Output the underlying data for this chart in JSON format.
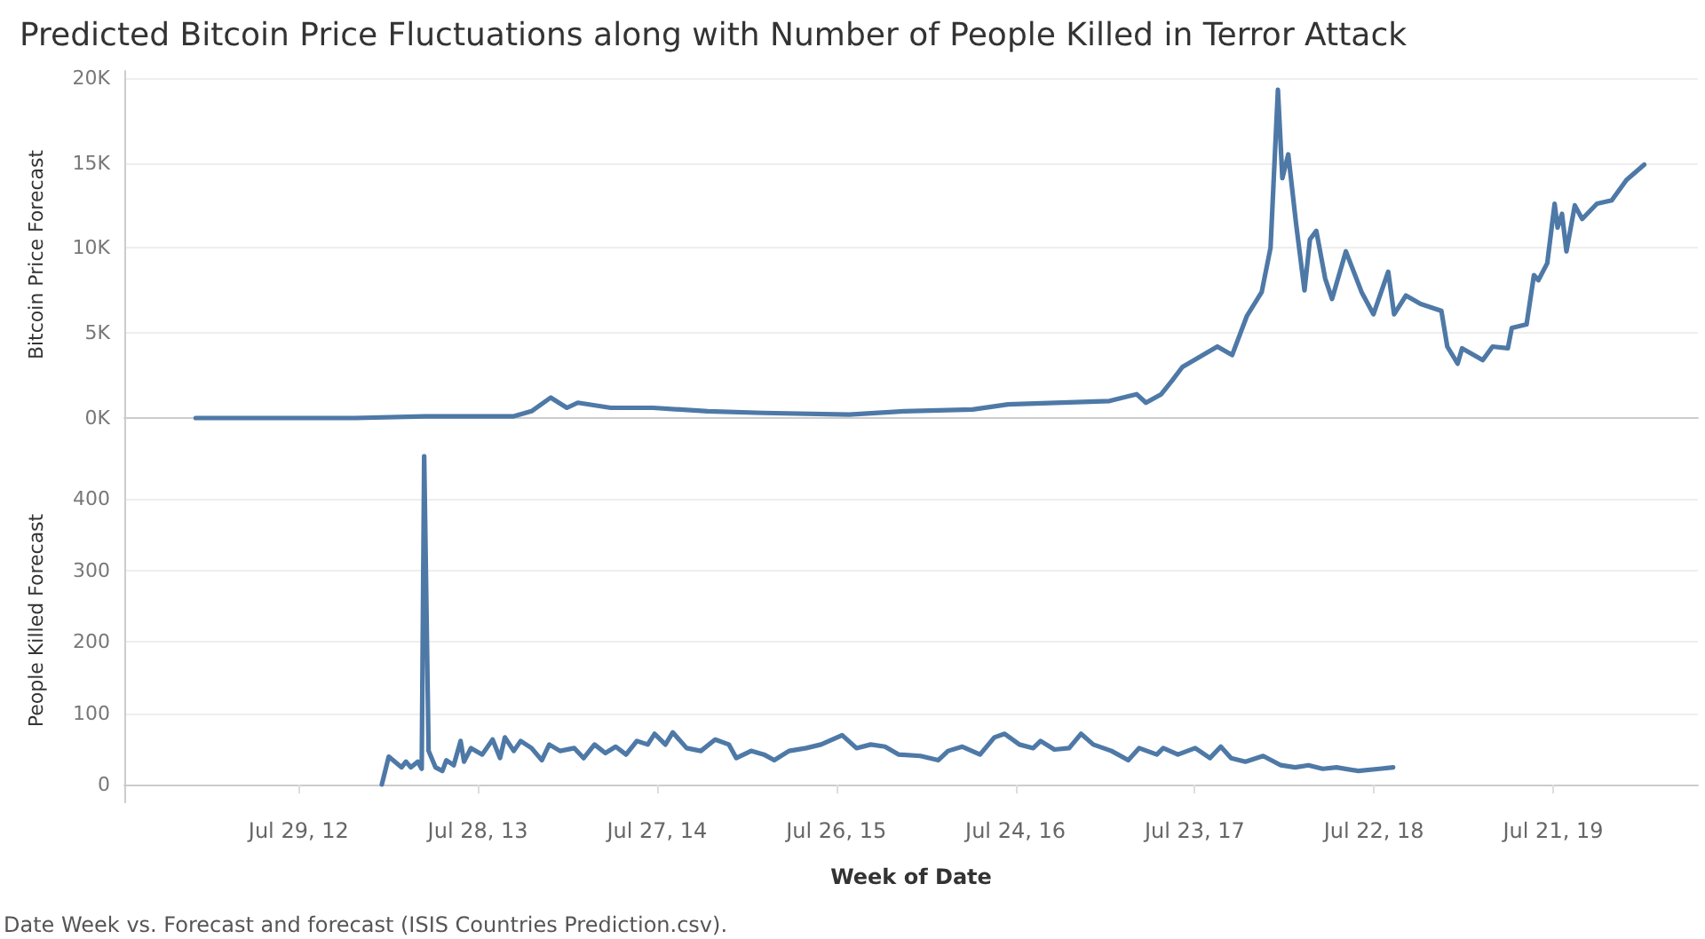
{
  "chart_data": [
    {
      "type": "line",
      "title": "Predicted Bitcoin Price Fluctuations along with Number of People Killed in Terror Attack",
      "ylabel": "Bitcoin Price Forecast",
      "grid": "y",
      "marker": "none",
      "tick_labels": "y",
      "xlim": [
        "2011-08-10",
        "2020-05-10"
      ],
      "ylim": [
        -1200,
        20400
      ],
      "yticks": [
        {
          "value": 0,
          "label": "0K"
        },
        {
          "value": 5000,
          "label": "5K"
        },
        {
          "value": 10000,
          "label": "10K"
        },
        {
          "value": 15000,
          "label": "15K"
        },
        {
          "value": 20000,
          "label": "20K"
        }
      ],
      "x": [
        "2012-01-02",
        "2012-05-24",
        "2012-11-20",
        "2013-04-12",
        "2013-06-23",
        "2013-10-09",
        "2013-11-14",
        "2013-12-23",
        "2014-01-25",
        "2014-02-16",
        "2014-04-24",
        "2014-07-19",
        "2014-11-07",
        "2015-02-27",
        "2015-08-21",
        "2015-12-11",
        "2016-04-28",
        "2016-07-09",
        "2017-01-31",
        "2017-03-27",
        "2017-04-15",
        "2017-05-16",
        "2017-06-07",
        "2017-06-28",
        "2017-09-07",
        "2017-10-07",
        "2017-11-06",
        "2017-12-06",
        "2017-12-24",
        "2018-01-08",
        "2018-01-17",
        "2018-01-29",
        "2018-02-14",
        "2018-03-03",
        "2018-03-14",
        "2018-03-27",
        "2018-04-14",
        "2018-04-28",
        "2018-05-26",
        "2018-06-27",
        "2018-07-21",
        "2018-08-20",
        "2018-09-01",
        "2018-09-25",
        "2018-10-25",
        "2018-12-06",
        "2018-12-18",
        "2019-01-08",
        "2019-01-17",
        "2019-02-28",
        "2019-03-20",
        "2019-04-20",
        "2019-04-28",
        "2019-05-28",
        "2019-06-12",
        "2019-06-21",
        "2019-07-09",
        "2019-07-24",
        "2019-07-30",
        "2019-08-08",
        "2019-08-17",
        "2019-09-03",
        "2019-09-18",
        "2019-10-18",
        "2019-11-17",
        "2019-12-17",
        "2020-01-22"
      ],
      "series": [
        {
          "color": "#4e79a7",
          "values": [
            0,
            0,
            0,
            100,
            100,
            100,
            400,
            1200,
            600,
            900,
            600,
            600,
            400,
            300,
            200,
            400,
            500,
            800,
            1000,
            1400,
            900,
            1400,
            2200,
            3000,
            4200,
            3700,
            6000,
            7400,
            10000,
            19300,
            14100,
            15500,
            11400,
            7500,
            10500,
            11000,
            8200,
            7000,
            9800,
            7400,
            6100,
            8600,
            6100,
            7200,
            6700,
            6300,
            4200,
            3200,
            4100,
            3400,
            4200,
            4100,
            5300,
            5500,
            8400,
            8100,
            9100,
            12600,
            11200,
            12000,
            9800,
            12500,
            11700,
            12600,
            12800,
            14000,
            14900
          ]
        }
      ]
    },
    {
      "type": "line",
      "ylabel": "People Killed Forecast",
      "xlabel": "Week of Date",
      "grid": "y",
      "marker": "none",
      "annotations": [
        "Date Week vs. Forecast and forecast (ISIS Countries Prediction.csv)."
      ],
      "xlim": [
        "2011-08-10",
        "2020-05-10"
      ],
      "xticks": [
        {
          "value": "2012-07-29",
          "label": "Jul 29, 12"
        },
        {
          "value": "2013-07-28",
          "label": "Jul 28, 13"
        },
        {
          "value": "2014-07-27",
          "label": "Jul 27, 14"
        },
        {
          "value": "2015-07-26",
          "label": "Jul 26, 15"
        },
        {
          "value": "2016-07-24",
          "label": "Jul 24, 16"
        },
        {
          "value": "2017-07-23",
          "label": "Jul 23, 17"
        },
        {
          "value": "2018-07-22",
          "label": "Jul 22, 18"
        },
        {
          "value": "2019-07-21",
          "label": "Jul 21, 19"
        }
      ],
      "ylim": [
        -25,
        485
      ],
      "yticks": [
        0,
        100,
        200,
        300,
        400
      ],
      "x": [
        "2013-01-14",
        "2013-01-28",
        "2013-02-23",
        "2013-03-04",
        "2013-03-14",
        "2013-03-28",
        "2013-04-05",
        "2013-04-10",
        "2013-04-19",
        "2013-05-03",
        "2013-05-17",
        "2013-05-25",
        "2013-06-09",
        "2013-06-23",
        "2013-06-30",
        "2013-07-14",
        "2013-08-06",
        "2013-08-27",
        "2013-09-11",
        "2013-09-21",
        "2013-10-09",
        "2013-10-23",
        "2013-11-14",
        "2013-12-05",
        "2013-12-20",
        "2014-01-11",
        "2014-02-09",
        "2014-02-28",
        "2014-03-22",
        "2014-04-13",
        "2014-05-04",
        "2014-05-25",
        "2014-06-16",
        "2014-07-08",
        "2014-07-22",
        "2014-08-13",
        "2014-08-28",
        "2014-09-25",
        "2014-10-24",
        "2014-11-22",
        "2014-12-20",
        "2015-01-04",
        "2015-02-03",
        "2015-03-01",
        "2015-03-22",
        "2015-04-21",
        "2015-05-26",
        "2015-06-25",
        "2015-08-07",
        "2015-09-05",
        "2015-10-04",
        "2015-11-02",
        "2015-11-30",
        "2016-01-13",
        "2016-02-18",
        "2016-03-09",
        "2016-04-07",
        "2016-05-13",
        "2016-06-11",
        "2016-07-02",
        "2016-08-01",
        "2016-08-29",
        "2016-09-13",
        "2016-10-11",
        "2016-11-10",
        "2016-12-04",
        "2016-12-29",
        "2017-02-04",
        "2017-03-10",
        "2017-04-01",
        "2017-05-07",
        "2017-05-20",
        "2017-06-19",
        "2017-07-24",
        "2017-08-23",
        "2017-09-14",
        "2017-10-05",
        "2017-11-03",
        "2017-12-09",
        "2018-01-14",
        "2018-02-12",
        "2018-03-11",
        "2018-04-09",
        "2018-05-07",
        "2018-06-20",
        "2018-08-02",
        "2018-08-30"
      ],
      "series": [
        {
          "color": "#4e79a7",
          "values": [
            0,
            39,
            24,
            32,
            24,
            32,
            22,
            460,
            47,
            24,
            19,
            34,
            27,
            61,
            32,
            51,
            42,
            63,
            37,
            66,
            47,
            61,
            51,
            34,
            56,
            47,
            51,
            37,
            56,
            44,
            53,
            42,
            61,
            56,
            71,
            56,
            73,
            51,
            47,
            63,
            56,
            37,
            47,
            42,
            34,
            47,
            51,
            56,
            69,
            51,
            56,
            53,
            42,
            40,
            34,
            47,
            53,
            42,
            66,
            71,
            56,
            51,
            61,
            49,
            51,
            71,
            56,
            47,
            34,
            51,
            42,
            51,
            42,
            51,
            37,
            53,
            37,
            32,
            40,
            27,
            24,
            27,
            22,
            24,
            19,
            22,
            24
          ]
        }
      ]
    }
  ]
}
